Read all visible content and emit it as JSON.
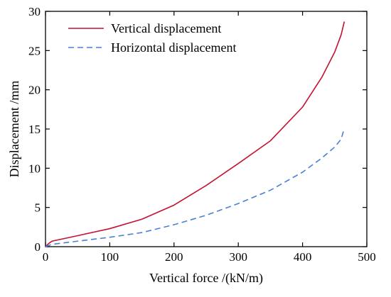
{
  "chart_data": {
    "type": "line",
    "xlabel": "Vertical force /(kN/m)",
    "ylabel": "Displacement /mm",
    "xlim": [
      0,
      500
    ],
    "ylim": [
      0,
      30
    ],
    "xticks": [
      0,
      100,
      200,
      300,
      400,
      500
    ],
    "yticks": [
      0,
      5,
      10,
      15,
      20,
      25,
      30
    ],
    "xtick_labels": [
      "0",
      "100",
      "200",
      "300",
      "400",
      "500"
    ],
    "ytick_labels": [
      "0",
      "5",
      "10",
      "15",
      "20",
      "25",
      "30"
    ],
    "grid": false,
    "legend_position": "top-left",
    "series": [
      {
        "name": "Vertical displacement",
        "color": "#c41230",
        "style": "solid",
        "x": [
          0,
          5,
          10,
          50,
          100,
          150,
          200,
          250,
          300,
          350,
          400,
          430,
          450,
          460,
          465
        ],
        "y": [
          0,
          0.4,
          0.7,
          1.4,
          2.3,
          3.5,
          5.3,
          7.8,
          10.6,
          13.5,
          17.8,
          21.6,
          24.8,
          27.0,
          28.7
        ]
      },
      {
        "name": "Horizontal displacement",
        "color": "#4a7fd6",
        "style": "dashed",
        "x": [
          0,
          10,
          50,
          100,
          150,
          200,
          250,
          300,
          350,
          400,
          430,
          450,
          460,
          465
        ],
        "y": [
          0,
          0.3,
          0.7,
          1.2,
          1.8,
          2.8,
          4.0,
          5.5,
          7.2,
          9.5,
          11.3,
          12.7,
          13.7,
          15.1
        ]
      }
    ]
  }
}
